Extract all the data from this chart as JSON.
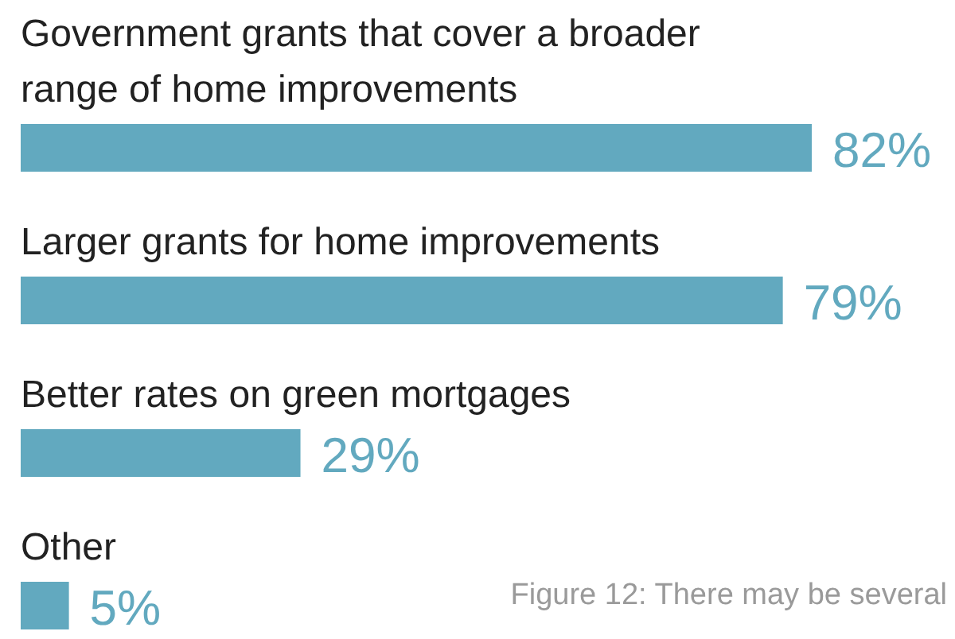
{
  "chart_data": {
    "type": "bar",
    "orientation": "horizontal",
    "categories": [
      "Government grants that cover a broader range of home improvements",
      "Larger grants for home improvements",
      "Better rates on green mortgages",
      "Other"
    ],
    "values": [
      82,
      79,
      29,
      5
    ],
    "value_labels": [
      "82%",
      "79%",
      "29%",
      "5%"
    ],
    "color": "#62a9bf",
    "annotations": [
      "Figure 12: There may be several"
    ]
  }
}
